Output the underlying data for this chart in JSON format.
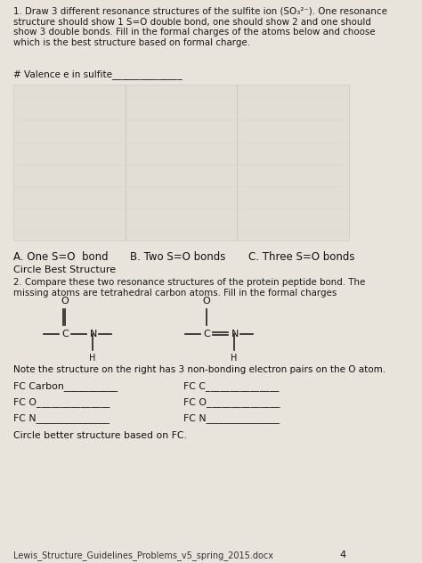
{
  "bg_color": "#d8d4cc",
  "text_color": "#1a1a1a",
  "page_bg": "#e8e4dc",
  "title_text": "1. Draw 3 different resonance structures of the sulfite ion (SO₃²⁻). One resonance\nstructure should show 1 S=O double bond, one should show 2 and one should\nshow 3 double bonds. Fill in the formal charges of the atoms below and choose\nwhich is the best structure based on formal charge.",
  "valence_line": "# Valence e in sulfite_______________",
  "label_A": "A. One S=O  bond",
  "label_B": "B. Two S=O bonds",
  "label_C": "C. Three S=O bonds",
  "circle_text": "Circle Best Structure",
  "q2_text": "2. Compare these two resonance structures of the protein peptide bond. The\nmissing atoms are tetrahedral carbon atoms. Fill in the formal charges",
  "note_text": "Note the structure on the right has 3 non-bonding electron pairs on the O atom.",
  "fc_labels_left": [
    "FC Carbon___________",
    "FC O_______________",
    "FC N_______________"
  ],
  "fc_labels_right": [
    "FC C_______________",
    "FC O_______________",
    "FC N_______________"
  ],
  "circle_better": "Circle better structure based on FC.",
  "footer": "Lewis_Structure_Guidelines_Problems_v5_spring_2015.docx",
  "page_num": "4"
}
